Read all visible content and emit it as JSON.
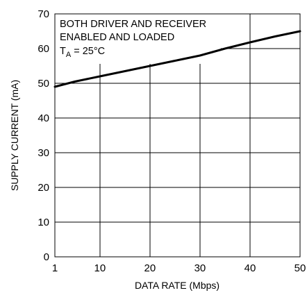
{
  "chart_data": {
    "type": "line",
    "xlabel": "DATA RATE (Mbps)",
    "ylabel": "SUPPLY CURRENT (mA)",
    "xlim": [
      1,
      50
    ],
    "ylim": [
      0,
      70
    ],
    "x_ticks": [
      "1",
      "10",
      "20",
      "30",
      "40",
      "50"
    ],
    "y_ticks": [
      "0",
      "10",
      "20",
      "30",
      "40",
      "50",
      "60",
      "70"
    ],
    "grid": true,
    "annotation": {
      "line1": "BOTH DRIVER AND RECEIVER",
      "line2": "ENABLED AND LOADED",
      "temp_prefix": "T",
      "temp_sub": "A",
      "temp_value": " = 25°C"
    },
    "series": [
      {
        "x": [
          1,
          5,
          10,
          15,
          20,
          25,
          30,
          35,
          40,
          45,
          50
        ],
        "y": [
          49,
          50.5,
          52,
          53.5,
          55,
          56.5,
          58,
          60,
          61.8,
          63.5,
          65
        ]
      }
    ]
  }
}
